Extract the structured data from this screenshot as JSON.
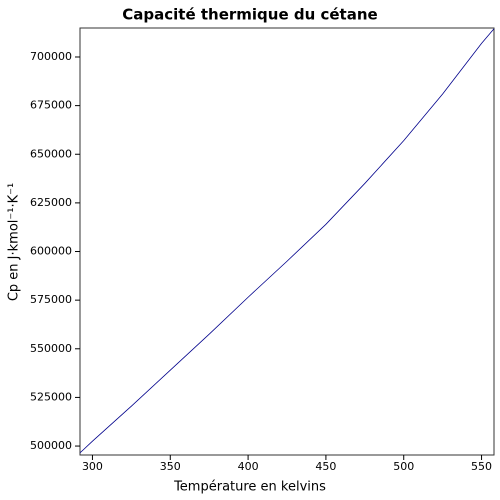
{
  "chart_data": {
    "type": "line",
    "title": "Capacité thermique du cétane",
    "x_label": "Température en kelvins",
    "y_label": "Cp en J·kmol⁻¹·K⁻¹",
    "x": [
      292,
      300,
      325,
      350,
      375,
      400,
      425,
      450,
      475,
      500,
      525,
      550,
      558
    ],
    "series": [
      {
        "name": "Cp",
        "color": "#00008b",
        "values": [
          496500,
          502500,
          520500,
          539000,
          557500,
          576500,
          595000,
          614000,
          635000,
          657000,
          681000,
          707000,
          714500
        ]
      }
    ],
    "xlim": [
      292,
      558
    ],
    "ylim": [
      495400,
      714900
    ],
    "xticks": [
      300,
      350,
      400,
      450,
      500,
      550
    ],
    "yticks": [
      500000,
      525000,
      550000,
      575000,
      600000,
      625000,
      650000,
      675000,
      700000
    ]
  }
}
